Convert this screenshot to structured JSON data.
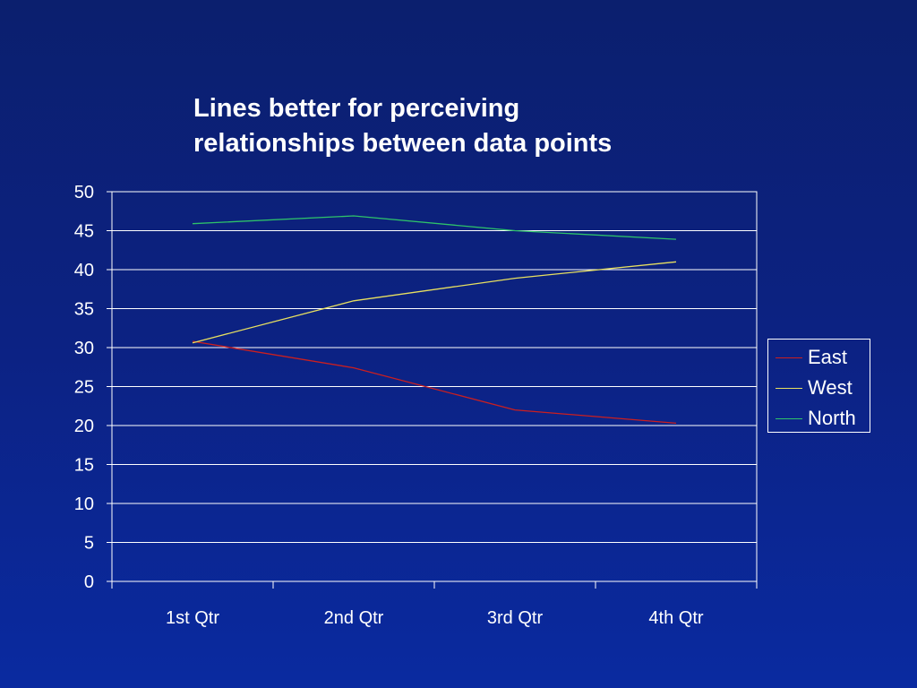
{
  "slide": {
    "title_line1": "Lines better for perceiving",
    "title_line2": "relationships between data points"
  },
  "chart_data": {
    "type": "line",
    "categories": [
      "1st Qtr",
      "2nd Qtr",
      "3rd Qtr",
      "4th Qtr"
    ],
    "series": [
      {
        "name": "East",
        "color": "#cc1f1f",
        "values": [
          30.8,
          27.4,
          22.0,
          20.3
        ]
      },
      {
        "name": "West",
        "color": "#e8e060",
        "values": [
          30.6,
          36.0,
          38.9,
          41.0
        ]
      },
      {
        "name": "North",
        "color": "#2ec26a",
        "values": [
          45.9,
          46.9,
          45.0,
          43.9
        ]
      }
    ],
    "ylim": [
      0,
      50
    ],
    "yticks": [
      "0",
      "5",
      "10",
      "15",
      "20",
      "25",
      "30",
      "35",
      "40",
      "45",
      "50"
    ],
    "grid": true,
    "legend_position": "right"
  }
}
